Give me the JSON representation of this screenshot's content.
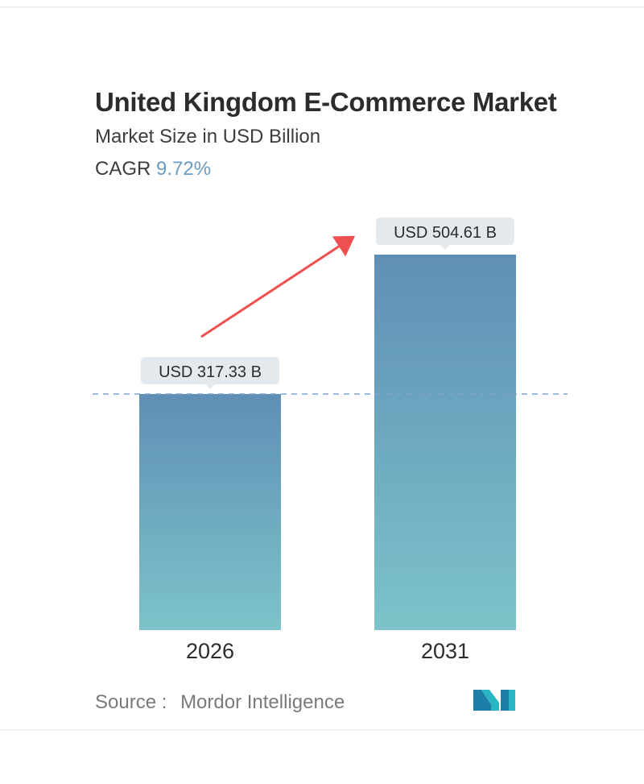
{
  "header": {
    "title": "United Kingdom E-Commerce Market",
    "subtitle": "Market Size in USD Billion",
    "cagr_label": "CAGR",
    "cagr_value": "9.72%"
  },
  "chart_data": {
    "type": "bar",
    "title": "United Kingdom E-Commerce Market",
    "subtitle": "Market Size in USD Billion",
    "categories": [
      "2026",
      "2031"
    ],
    "values": [
      317.33,
      504.61
    ],
    "data_labels": [
      "USD 317.33 B",
      "USD 504.61 B"
    ],
    "unit": "USD Billion",
    "cagr": "9.72%",
    "xlabel": "",
    "ylabel": "",
    "grid": false,
    "legend": "none",
    "annotations": [
      "dashed reference line at 2026 value",
      "red arrow indicating growth"
    ],
    "colors": {
      "bar_top": "#5f8fb6",
      "bar_bottom": "#7cc3c9",
      "label_bg": "#e4e9ee",
      "reference_line": "#7fa3c8",
      "arrow": "#ee4f4f",
      "cagr_value": "#6b9bc0"
    }
  },
  "footer": {
    "source_label": "Source :",
    "source_name": "Mordor Intelligence",
    "logo_icon": "mordor-intelligence-logo-icon"
  }
}
